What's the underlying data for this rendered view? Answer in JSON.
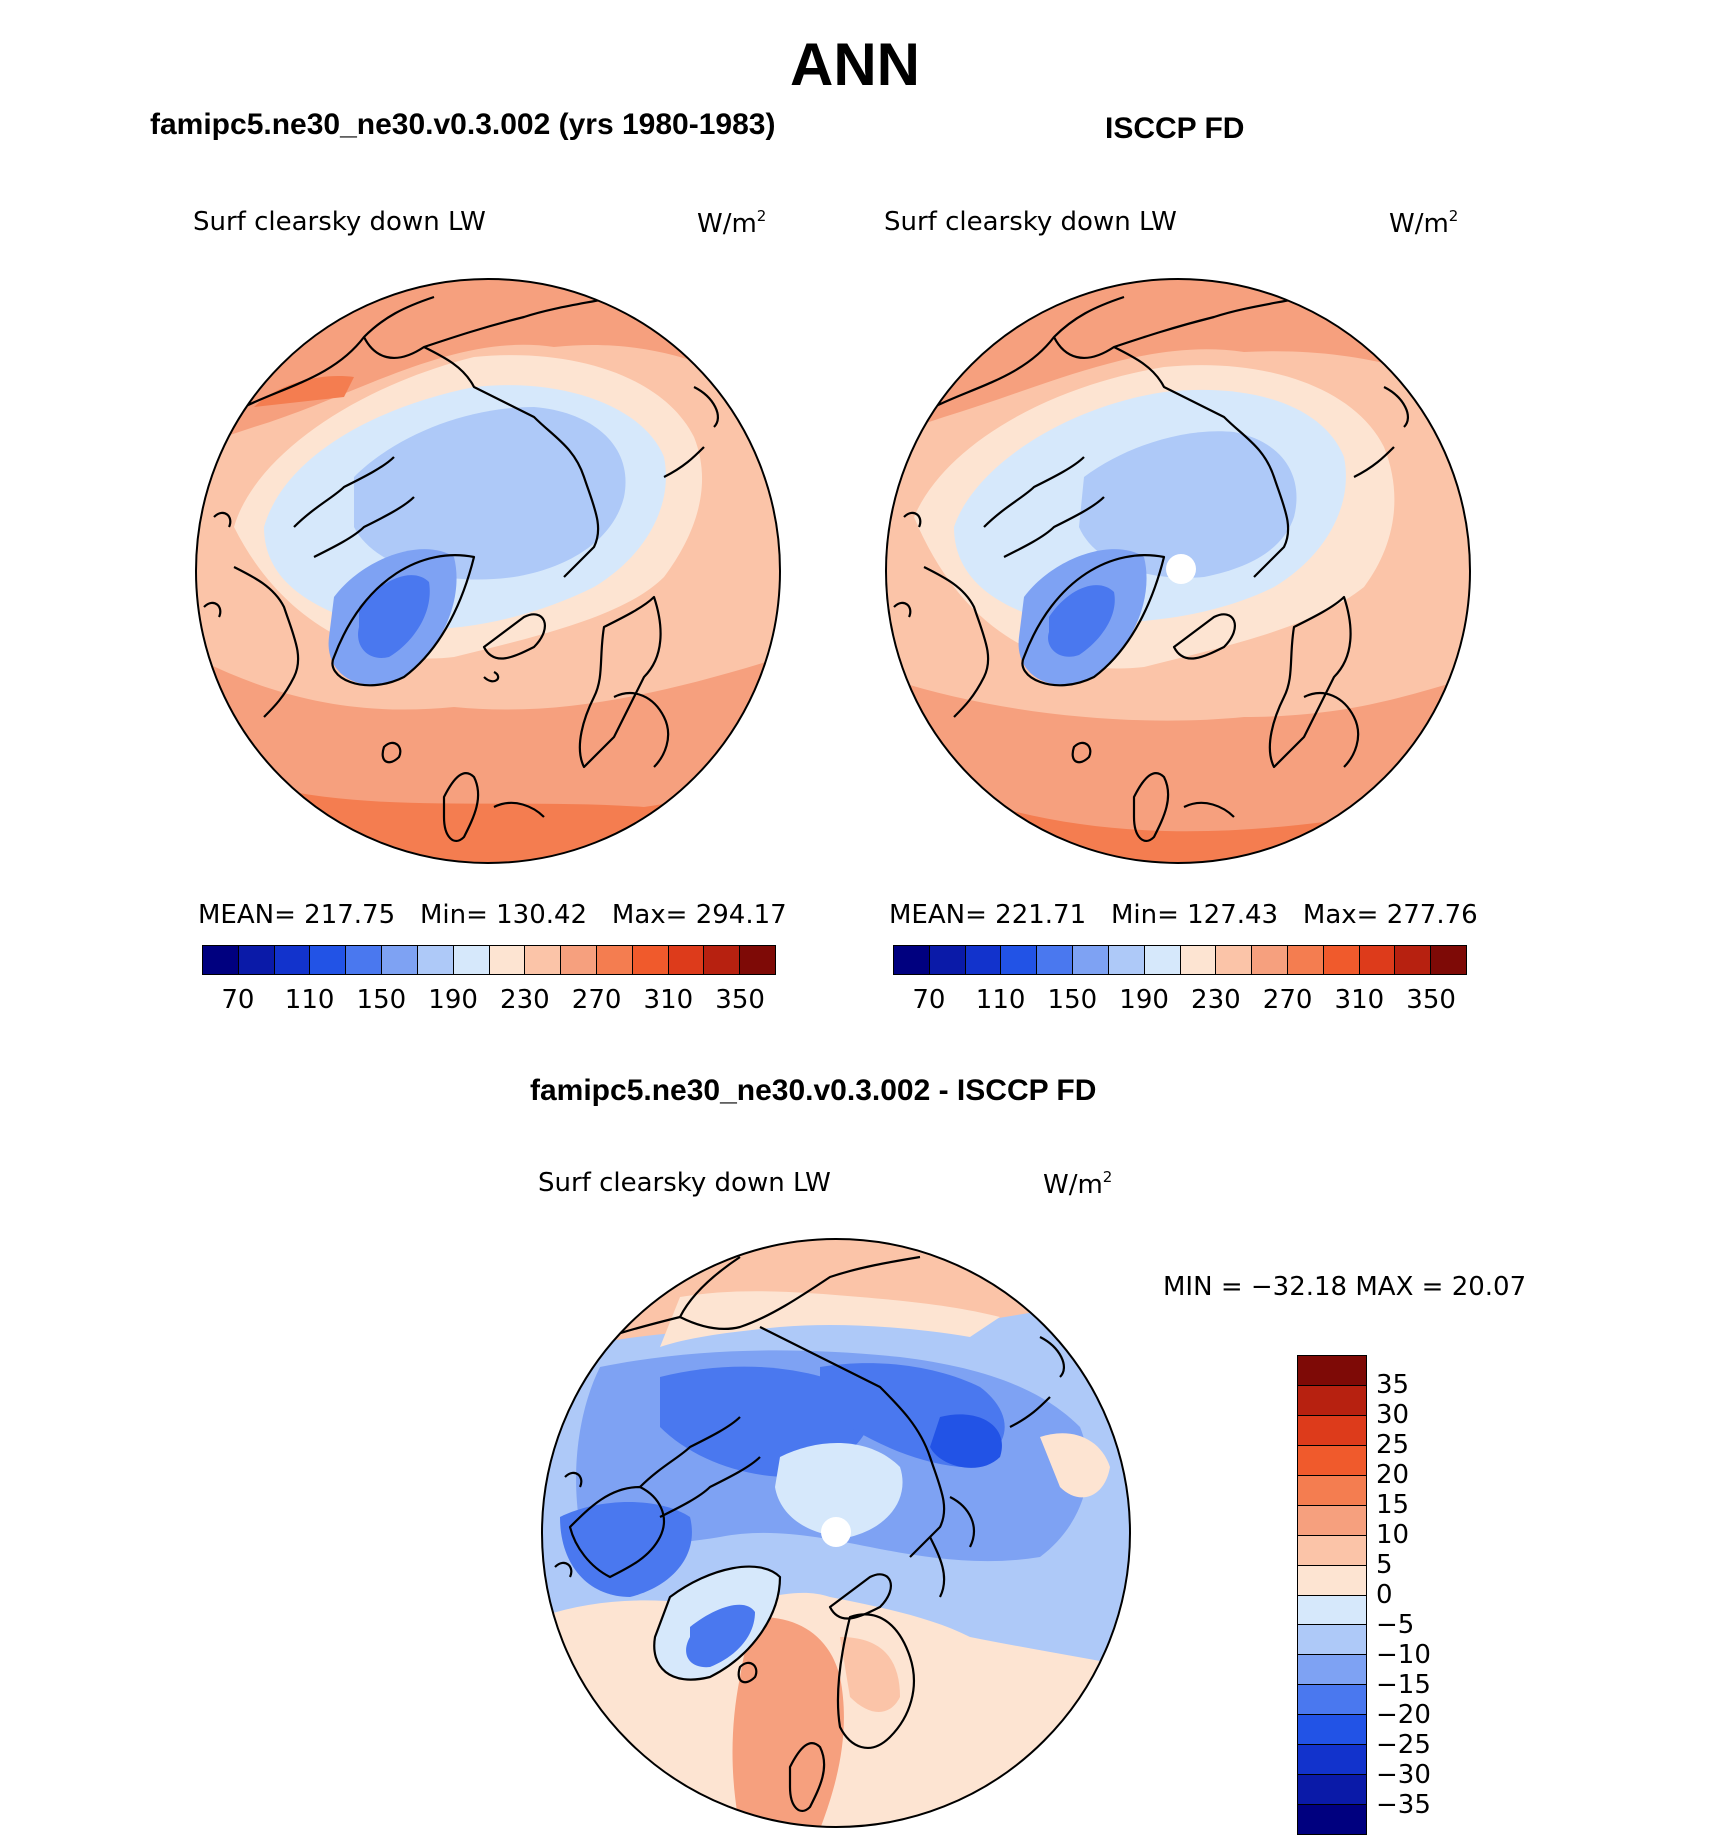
{
  "title": "ANN",
  "colors": {
    "land_outline": "#000000",
    "missing": "#ffffff"
  },
  "panels": {
    "model": {
      "title": "famipc5.ne30_ne30.v0.3.002 (yrs 1980-1983)",
      "variable": "Surf clearsky down LW",
      "units": "W/m",
      "units_exp": "2",
      "stats": {
        "mean_label": "MEAN=",
        "mean": "217.75",
        "min_label": "Min=",
        "min": "130.42",
        "max_label": "Max=",
        "max": "294.17"
      }
    },
    "obs": {
      "title": "ISCCP FD",
      "variable": "Surf clearsky down LW",
      "units": "W/m",
      "units_exp": "2",
      "stats": {
        "mean_label": "MEAN=",
        "mean": "221.71",
        "min_label": "Min=",
        "min": "127.43",
        "max_label": "Max=",
        "max": "277.76"
      }
    },
    "diff": {
      "title": "famipc5.ne30_ne30.v0.3.002 - ISCCP FD",
      "variable": "Surf clearsky down LW",
      "units": "W/m",
      "units_exp": "2",
      "stats_text": "MIN = −32.18 MAX =  20.07"
    }
  },
  "colorbar_abs": {
    "colors": [
      "#00007f",
      "#0a1aa8",
      "#1233cc",
      "#2253e6",
      "#4a78ef",
      "#7ea2f3",
      "#aec9f8",
      "#d6e8fb",
      "#fde4d2",
      "#fbc4a8",
      "#f6a07e",
      "#f47d50",
      "#f05a2c",
      "#dd3b1b",
      "#b72110",
      "#7e0a06"
    ],
    "ticks": [
      "70",
      "110",
      "150",
      "190",
      "230",
      "270",
      "310",
      "350"
    ]
  },
  "colorbar_diff": {
    "colors": [
      "#7e0a06",
      "#b72110",
      "#dd3b1b",
      "#f05a2c",
      "#f47d50",
      "#f6a07e",
      "#fbc4a8",
      "#fde4d2",
      "#d6e8fb",
      "#aec9f8",
      "#7ea2f3",
      "#4a78ef",
      "#2253e6",
      "#1233cc",
      "#0a1aa8",
      "#00007f"
    ],
    "ticks": [
      "35",
      "30",
      "25",
      "20",
      "15",
      "10",
      "5",
      "0",
      "−5",
      "−10",
      "−15",
      "−20",
      "−25",
      "−30",
      "−35"
    ]
  }
}
